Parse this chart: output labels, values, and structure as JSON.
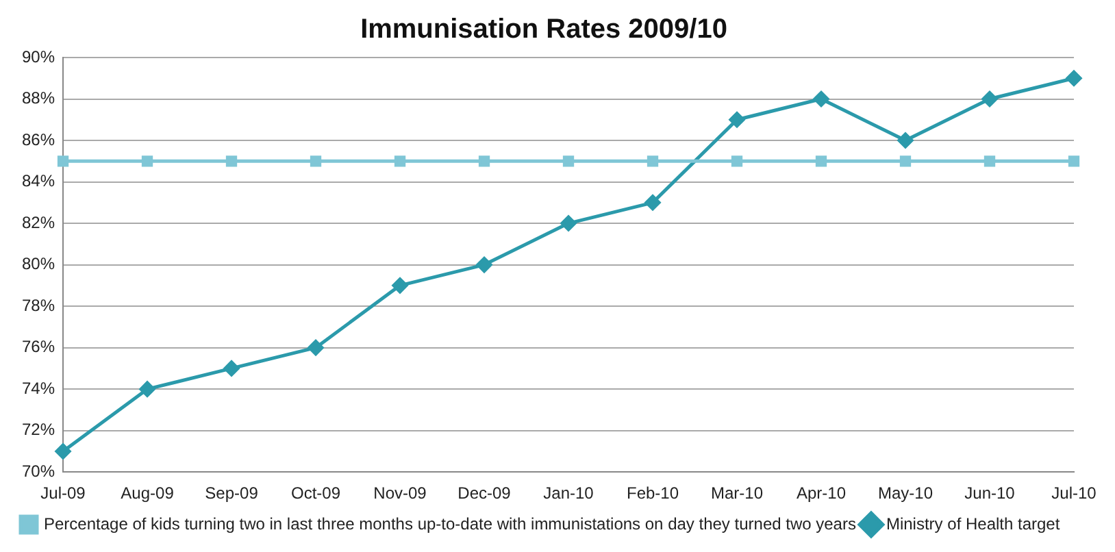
{
  "chart_data": {
    "type": "line",
    "title": "Immunisation Rates 2009/10",
    "categories": [
      "Jul-09",
      "Aug-09",
      "Sep-09",
      "Oct-09",
      "Nov-09",
      "Dec-09",
      "Jan-10",
      "Feb-10",
      "Mar-10",
      "Apr-10",
      "May-10",
      "Jun-10",
      "Jul-10"
    ],
    "series": [
      {
        "name": "Percentage of kids turning two in last three months up-to-date with immunistations on day they turned two years",
        "color": "#7fc6d6",
        "marker": "square",
        "values": [
          85,
          85,
          85,
          85,
          85,
          85,
          85,
          85,
          85,
          85,
          85,
          85,
          85
        ]
      },
      {
        "name": "Ministry of Health target",
        "color": "#2b9aab",
        "marker": "diamond",
        "values": [
          71,
          74,
          75,
          76,
          79,
          80,
          82,
          83,
          87,
          88,
          86,
          88,
          89
        ]
      }
    ],
    "ylim": [
      70,
      90
    ],
    "yticks": [
      {
        "value": 70,
        "label": "70%"
      },
      {
        "value": 72,
        "label": "72%"
      },
      {
        "value": 74,
        "label": "74%"
      },
      {
        "value": 76,
        "label": "76%"
      },
      {
        "value": 78,
        "label": "78%"
      },
      {
        "value": 80,
        "label": "80%"
      },
      {
        "value": 82,
        "label": "82%"
      },
      {
        "value": 84,
        "label": "84%"
      },
      {
        "value": 86,
        "label": "86%"
      },
      {
        "value": 88,
        "label": "88%"
      },
      {
        "value": 90,
        "label": "90%"
      }
    ],
    "grid": "y",
    "legend": "bottom",
    "line_style": "solid"
  }
}
